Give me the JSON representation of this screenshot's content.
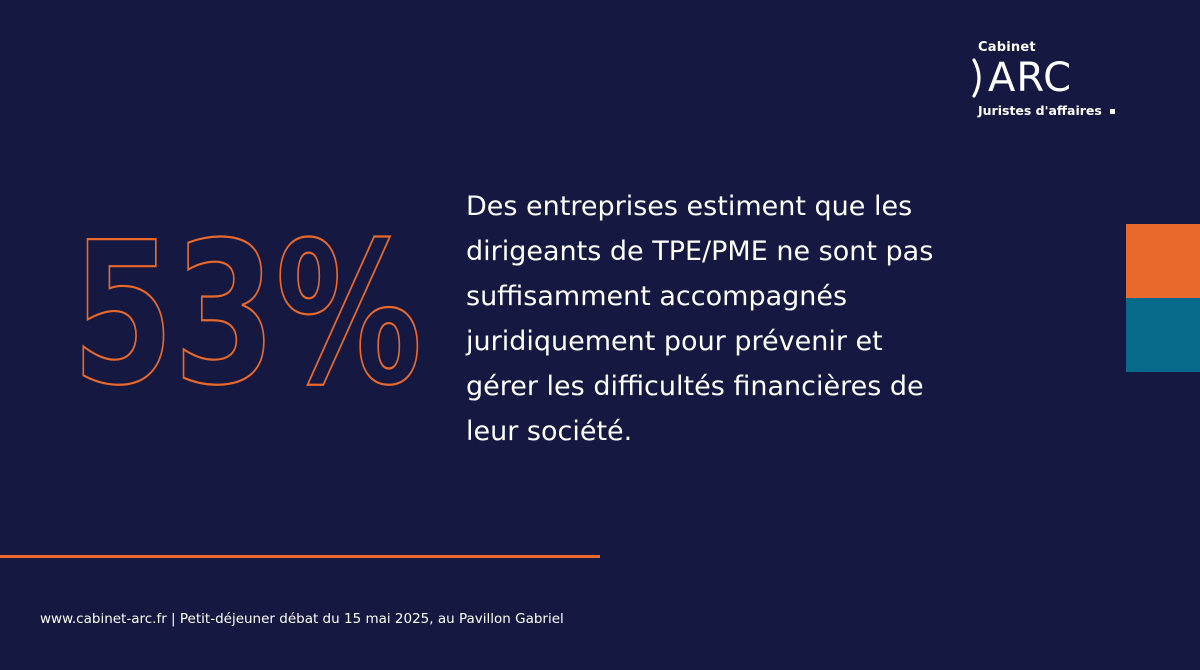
{
  "logo": {
    "top_label": "Cabinet",
    "main_label": "ARC",
    "sub_label": "Juristes d'affaires"
  },
  "stat": {
    "value": "53%"
  },
  "statement": {
    "lines": [
      "Des entreprises estiment que les",
      "dirigeants de TPE/PME ne sont pas",
      "suffisamment accompagnés",
      "juridiquement pour prévenir et",
      "gérer les difficultés financières de",
      "leur société."
    ]
  },
  "footer": {
    "text": "www.cabinet-arc.fr | Petit-déjeuner débat du 15 mai 2025, au Pavillon Gabriel"
  },
  "colors": {
    "background": "#151840",
    "accent_orange": "#E8692B",
    "accent_blue": "#076A8B",
    "text": "#FFFFFF"
  },
  "icons": {
    "logo_mark": "arc-bracket-icon",
    "logo_dot": "square-dot-icon"
  }
}
